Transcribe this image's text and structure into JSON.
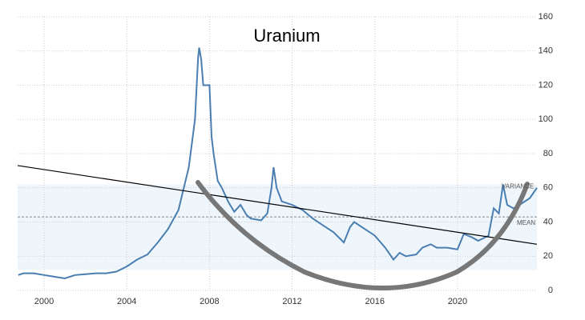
{
  "chart_data": {
    "type": "line",
    "title": "Uranium",
    "xlim": [
      1998.72,
      2023.84
    ],
    "ylim": [
      0,
      160
    ],
    "xticks": [
      2000,
      2004,
      2008,
      2012,
      2016,
      2020
    ],
    "yticks": [
      0,
      20,
      40,
      60,
      80,
      100,
      120,
      140,
      160
    ],
    "grid": true,
    "series": [
      {
        "name": "Uranium",
        "color": "#4a7eb0",
        "x": [
          1998.75,
          1999.0,
          1999.5,
          2000,
          2000.5,
          2001,
          2001.5,
          2002,
          2002.5,
          2003,
          2003.5,
          2004,
          2004.5,
          2005,
          2005.5,
          2006,
          2006.5,
          2007,
          2007.3,
          2007.45,
          2007.5,
          2007.6,
          2007.7,
          2008,
          2008.1,
          2008.2,
          2008.4,
          2008.6,
          2008.9,
          2009.2,
          2009.5,
          2009.8,
          2010,
          2010.5,
          2010.8,
          2011.0,
          2011.1,
          2011.25,
          2011.5,
          2012,
          2012.5,
          2013,
          2013.5,
          2014,
          2014.5,
          2014.8,
          2015,
          2015.5,
          2016,
          2016.5,
          2016.9,
          2017.2,
          2017.5,
          2018,
          2018.3,
          2018.7,
          2019,
          2019.5,
          2020,
          2020.3,
          2020.7,
          2021,
          2021.5,
          2021.75,
          2022.0,
          2022.2,
          2022.4,
          2022.7,
          2023,
          2023.5,
          2023.84
        ],
        "values": [
          9,
          10,
          10,
          9,
          8,
          7,
          9,
          9.5,
          10,
          10,
          11,
          14,
          18,
          21,
          28,
          36,
          47,
          72,
          100,
          136,
          142,
          135,
          120,
          120,
          90,
          80,
          64,
          60,
          52,
          46,
          50,
          44,
          42,
          41,
          45,
          60,
          72,
          60,
          52,
          50,
          47,
          42,
          38,
          34,
          28,
          37,
          40,
          36,
          32,
          25,
          18,
          22,
          20,
          21,
          25,
          27,
          25,
          25,
          24,
          33,
          31,
          29,
          32,
          48,
          45,
          62,
          50,
          48,
          50,
          54,
          60
        ]
      }
    ],
    "variance_band": [
      12,
      62
    ],
    "mean": 43,
    "trendline": {
      "x": [
        1998.72,
        2023.84
      ],
      "y": [
        73,
        27
      ]
    },
    "annotations": [
      "VARIANCE",
      "MEAN"
    ]
  }
}
